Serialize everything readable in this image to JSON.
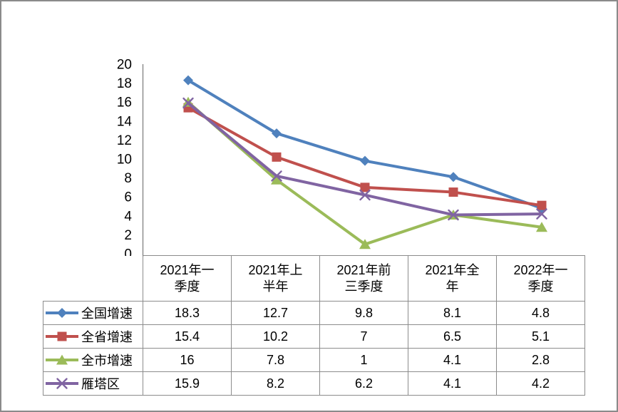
{
  "colors": {
    "frame_border": "#8a8a8a",
    "table_border": "#8c8c8c",
    "axis_line": "#808080",
    "series_blue": "#4F81BD",
    "series_red": "#C0504D",
    "series_green": "#9BBB59",
    "series_purple": "#8064A2"
  },
  "chart_data": {
    "type": "line",
    "title": "",
    "xlabel": "",
    "ylabel": "",
    "grid": false,
    "legend_position": "table-left",
    "ylim": [
      0,
      20
    ],
    "yticks": [
      0,
      2,
      4,
      6,
      8,
      10,
      12,
      14,
      16,
      18,
      20
    ],
    "categories": [
      "2021年一季度",
      "2021年上半年",
      "2021年前三季度",
      "2021年全年",
      "2022年一季度"
    ],
    "categories_display": [
      "2021年一\n季度",
      "2021年上\n半年",
      "2021年前\n三季度",
      "2021年全\n年",
      "2022年一\n季度"
    ],
    "series": [
      {
        "name": "全国增速",
        "marker": "diamond",
        "color": "#4F81BD",
        "values": [
          18.3,
          12.7,
          9.8,
          8.1,
          4.8
        ]
      },
      {
        "name": "全省增速",
        "marker": "square",
        "color": "#C0504D",
        "values": [
          15.4,
          10.2,
          7,
          6.5,
          5.1
        ]
      },
      {
        "name": "全市增速",
        "marker": "triangle",
        "color": "#9BBB59",
        "values": [
          16,
          7.8,
          1,
          4.1,
          2.8
        ]
      },
      {
        "name": "雁塔区",
        "marker": "x",
        "color": "#8064A2",
        "values": [
          15.9,
          8.2,
          6.2,
          4.1,
          4.2
        ]
      }
    ]
  }
}
